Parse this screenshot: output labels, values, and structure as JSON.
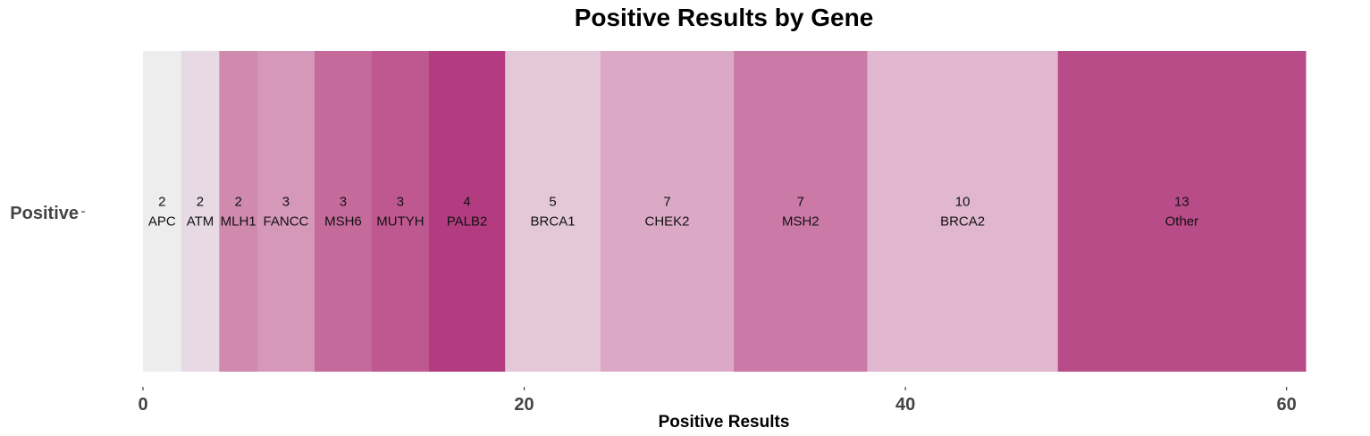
{
  "chart_data": {
    "type": "bar",
    "orientation": "horizontal-stacked",
    "title": "Positive Results by Gene",
    "xlabel": "Positive Results",
    "ylabel": "",
    "category": "Positive",
    "xlim": [
      0,
      61
    ],
    "xticks": [
      0,
      20,
      40,
      60
    ],
    "grid": false,
    "legend": "none",
    "segments": [
      {
        "gene": "APC",
        "value": 2,
        "color": "#eeedee"
      },
      {
        "gene": "ATM",
        "value": 2,
        "color": "#e8dae4"
      },
      {
        "gene": "MLH1",
        "value": 2,
        "color": "#d08aad"
      },
      {
        "gene": "FANCC",
        "value": 3,
        "color": "#d698b9"
      },
      {
        "gene": "MSH6",
        "value": 3,
        "color": "#c56b9c"
      },
      {
        "gene": "MUTYH",
        "value": 3,
        "color": "#bf5891"
      },
      {
        "gene": "PALB2",
        "value": 4,
        "color": "#b33c81"
      },
      {
        "gene": "BRCA1",
        "value": 5,
        "color": "#e5c8d8"
      },
      {
        "gene": "CHEK2",
        "value": 7,
        "color": "#dba9c5"
      },
      {
        "gene": "MSH2",
        "value": 7,
        "color": "#cb79a6"
      },
      {
        "gene": "BRCA2",
        "value": 10,
        "color": "#e0b7ce"
      },
      {
        "gene": "Other",
        "value": 13,
        "color": "#b84c89"
      }
    ]
  }
}
